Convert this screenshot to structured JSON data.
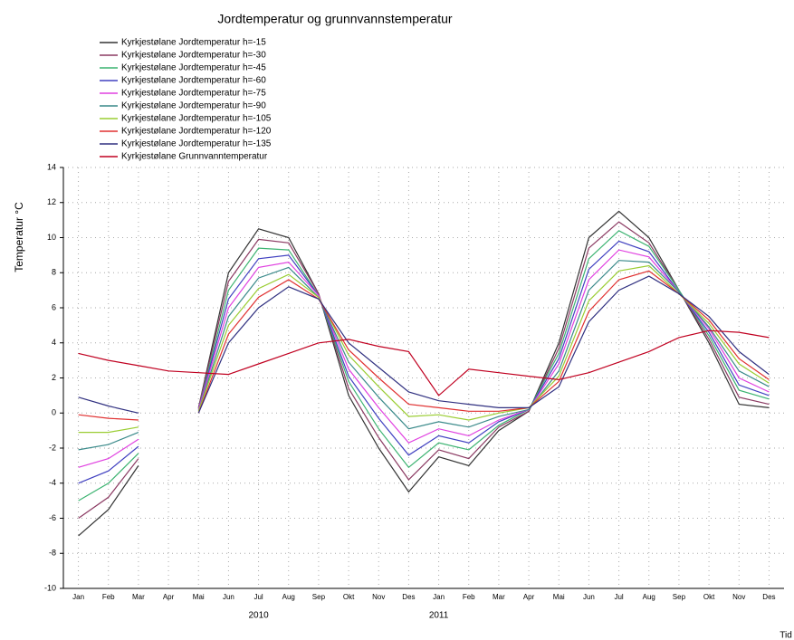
{
  "chart_data": {
    "type": "line",
    "title": "Jordtemperatur og grunnvannstemperatur",
    "y_label": "Temperatur °C",
    "x_label": "Tid",
    "years": [
      "2010",
      "2011"
    ],
    "categories": [
      "Jan",
      "Feb",
      "Mar",
      "Apr",
      "Mai",
      "Jun",
      "Jul",
      "Aug",
      "Sep",
      "Okt",
      "Nov",
      "Des",
      "Jan",
      "Feb",
      "Mar",
      "Apr",
      "Mai",
      "Jun",
      "Jul",
      "Aug",
      "Sep",
      "Okt",
      "Nov",
      "Des"
    ],
    "ylim": [
      -10,
      14
    ],
    "yticks": [
      -10,
      -8,
      -6,
      -4,
      -2,
      0,
      2,
      4,
      6,
      8,
      10,
      12,
      14
    ],
    "grid": true,
    "series": [
      {
        "name": "Kyrkjestølane Jordtemperatur  h=-15",
        "color": "#333333",
        "values": [
          -7,
          -5.5,
          -3,
          null,
          0.3,
          8,
          10.5,
          10,
          6.8,
          1,
          -2,
          -4.5,
          -2.5,
          -3,
          -1,
          0.1,
          4,
          10,
          11.5,
          10,
          7,
          4,
          0.5,
          0.3
        ]
      },
      {
        "name": "Kyrkjestølane Jordtemperatur  h=-30",
        "color": "#8b3a62",
        "values": [
          -6.0,
          -4.8,
          -2.6,
          null,
          0.3,
          7.5,
          9.9,
          9.7,
          6.8,
          1.4,
          -1.4,
          -3.8,
          -2.1,
          -2.6,
          -0.8,
          0.1,
          3.7,
          9.4,
          10.9,
          9.7,
          7.0,
          4.2,
          0.9,
          0.5
        ]
      },
      {
        "name": "Kyrkjestølane Jordtemperatur  h=-45",
        "color": "#3cb371",
        "values": [
          -5.0,
          -4.0,
          -2.3,
          null,
          0.2,
          7.0,
          9.4,
          9.3,
          6.7,
          1.8,
          -0.9,
          -3.1,
          -1.7,
          -2.1,
          -0.7,
          0.2,
          3.4,
          8.8,
          10.4,
          9.5,
          7.0,
          4.4,
          1.3,
          0.8
        ]
      },
      {
        "name": "Kyrkjestølane Jordtemperatur  h=-60",
        "color": "#4040c0",
        "values": [
          -4.0,
          -3.3,
          -1.9,
          null,
          0.2,
          6.5,
          8.8,
          9.0,
          6.7,
          2.1,
          -0.3,
          -2.4,
          -1.3,
          -1.7,
          -0.5,
          0.2,
          3.1,
          8.2,
          9.8,
          9.2,
          6.9,
          4.6,
          1.6,
          1.0
        ]
      },
      {
        "name": "Kyrkjestølane Jordtemperatur  h=-75",
        "color": "#e040e0",
        "values": [
          -3.1,
          -2.6,
          -1.5,
          null,
          0.2,
          6.0,
          8.3,
          8.6,
          6.7,
          2.5,
          0.3,
          -1.7,
          -0.9,
          -1.3,
          -0.4,
          0.2,
          2.8,
          7.6,
          9.3,
          8.9,
          6.9,
          4.8,
          2.0,
          1.2
        ]
      },
      {
        "name": "Kyrkjestølane Jordtemperatur  h=-90",
        "color": "#3a8a8a",
        "values": [
          -2.1,
          -1.8,
          -1.1,
          null,
          0.1,
          5.5,
          7.7,
          8.3,
          6.6,
          2.9,
          0.9,
          -0.9,
          -0.5,
          -0.8,
          -0.2,
          0.2,
          2.4,
          7.0,
          8.7,
          8.6,
          6.9,
          4.9,
          2.4,
          1.5
        ]
      },
      {
        "name": "Kyrkjestølane Jordtemperatur  h=-105",
        "color": "#9acd32",
        "values": [
          -1.1,
          -1.1,
          -0.8,
          null,
          0.1,
          5.0,
          7.1,
          7.9,
          6.6,
          3.3,
          1.5,
          -0.2,
          -0.1,
          -0.4,
          0.0,
          0.3,
          2.1,
          6.4,
          8.1,
          8.4,
          6.8,
          5.1,
          2.8,
          1.7
        ]
      },
      {
        "name": "Kyrkjestølane Jordtemperatur  h=-120",
        "color": "#e03030",
        "values": [
          -0.1,
          -0.3,
          -0.4,
          null,
          0.0,
          4.5,
          6.6,
          7.6,
          6.5,
          3.6,
          2.0,
          0.5,
          0.3,
          0.1,
          0.1,
          0.3,
          1.8,
          5.8,
          7.6,
          8.1,
          6.8,
          5.3,
          3.1,
          1.9
        ]
      },
      {
        "name": "Kyrkjestølane Jordtemperatur  h=-135",
        "color": "#303080",
        "values": [
          0.9,
          0.4,
          0.0,
          null,
          0.0,
          4,
          6,
          7.2,
          6.5,
          4,
          2.6,
          1.2,
          0.7,
          0.5,
          0.3,
          0.3,
          1.5,
          5.2,
          7,
          7.8,
          6.8,
          5.5,
          3.5,
          2.2
        ]
      },
      {
        "name": "Kyrkjestølane Grunnvanntemperatur",
        "color": "#c00020",
        "values": [
          3.4,
          3.0,
          2.7,
          2.4,
          2.3,
          2.2,
          2.8,
          3.4,
          4.0,
          4.2,
          3.8,
          3.5,
          1.0,
          2.5,
          2.3,
          2.1,
          1.9,
          2.3,
          2.9,
          3.5,
          4.3,
          4.7,
          4.6,
          4.3
        ]
      }
    ]
  }
}
